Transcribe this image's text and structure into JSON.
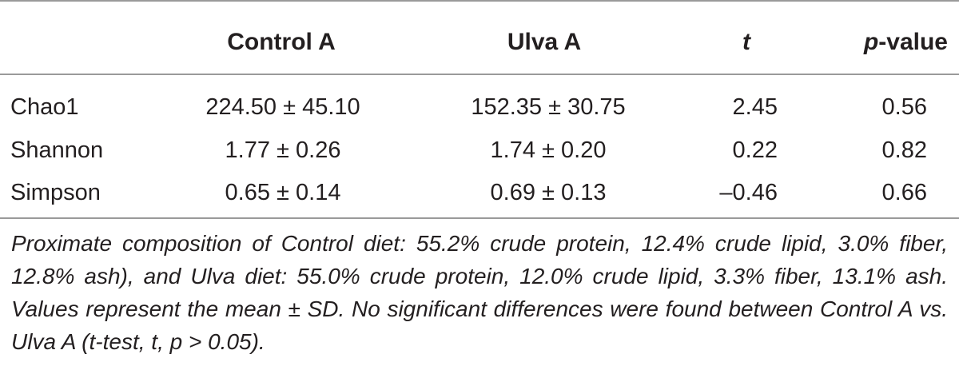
{
  "table": {
    "headers": {
      "control": "Control A",
      "ulva": "Ulva A",
      "t": "t",
      "p_italic": "p",
      "p_rest": "-value"
    },
    "rows": [
      {
        "metric": "Chao1",
        "control": "224.50 ± 45.10",
        "ulva": "152.35 ± 30.75",
        "t": "2.45",
        "p": "0.56"
      },
      {
        "metric": "Shannon",
        "control": "1.77 ± 0.26",
        "ulva": "1.74 ± 0.20",
        "t": "0.22",
        "p": "0.82"
      },
      {
        "metric": "Simpson",
        "control": "0.65 ± 0.14",
        "ulva": "0.69 ± 0.13",
        "t": "–0.46",
        "p": "0.66"
      }
    ],
    "footnote": "Proximate composition of Control diet: 55.2% crude protein, 12.4% crude lipid, 3.0% fiber, 12.8% ash), and Ulva diet: 55.0% crude protein, 12.0% crude lipid, 3.3% fiber, 13.1% ash. Values represent the mean ± SD. No significant differences were found between Control A vs. Ulva A (t-test, t, p > 0.05)."
  }
}
